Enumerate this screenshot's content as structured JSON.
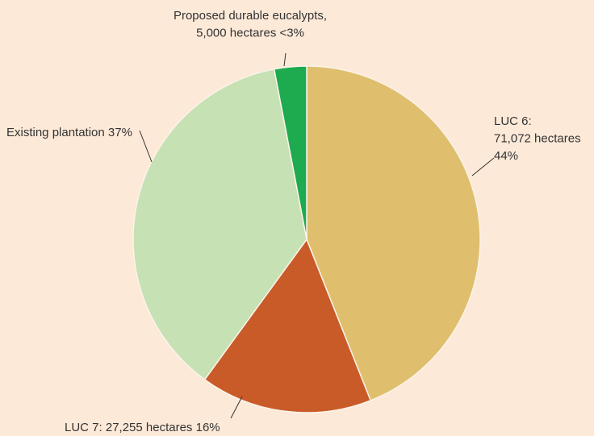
{
  "chart_data": {
    "type": "pie",
    "labels": [
      [
        "LUC 6:",
        "71,072 hectares",
        "44%"
      ],
      [
        "LUC 7: 27,255 hectares 16%"
      ],
      [
        "Existing plantation 37%"
      ],
      [
        "Proposed durable eucalypts,",
        "5,000 hectares <3%"
      ]
    ],
    "values": [
      44,
      16,
      37,
      3
    ],
    "colors": [
      "#dfbf6e",
      "#c95b28",
      "#c6e1b3",
      "#1eaa4e"
    ]
  }
}
